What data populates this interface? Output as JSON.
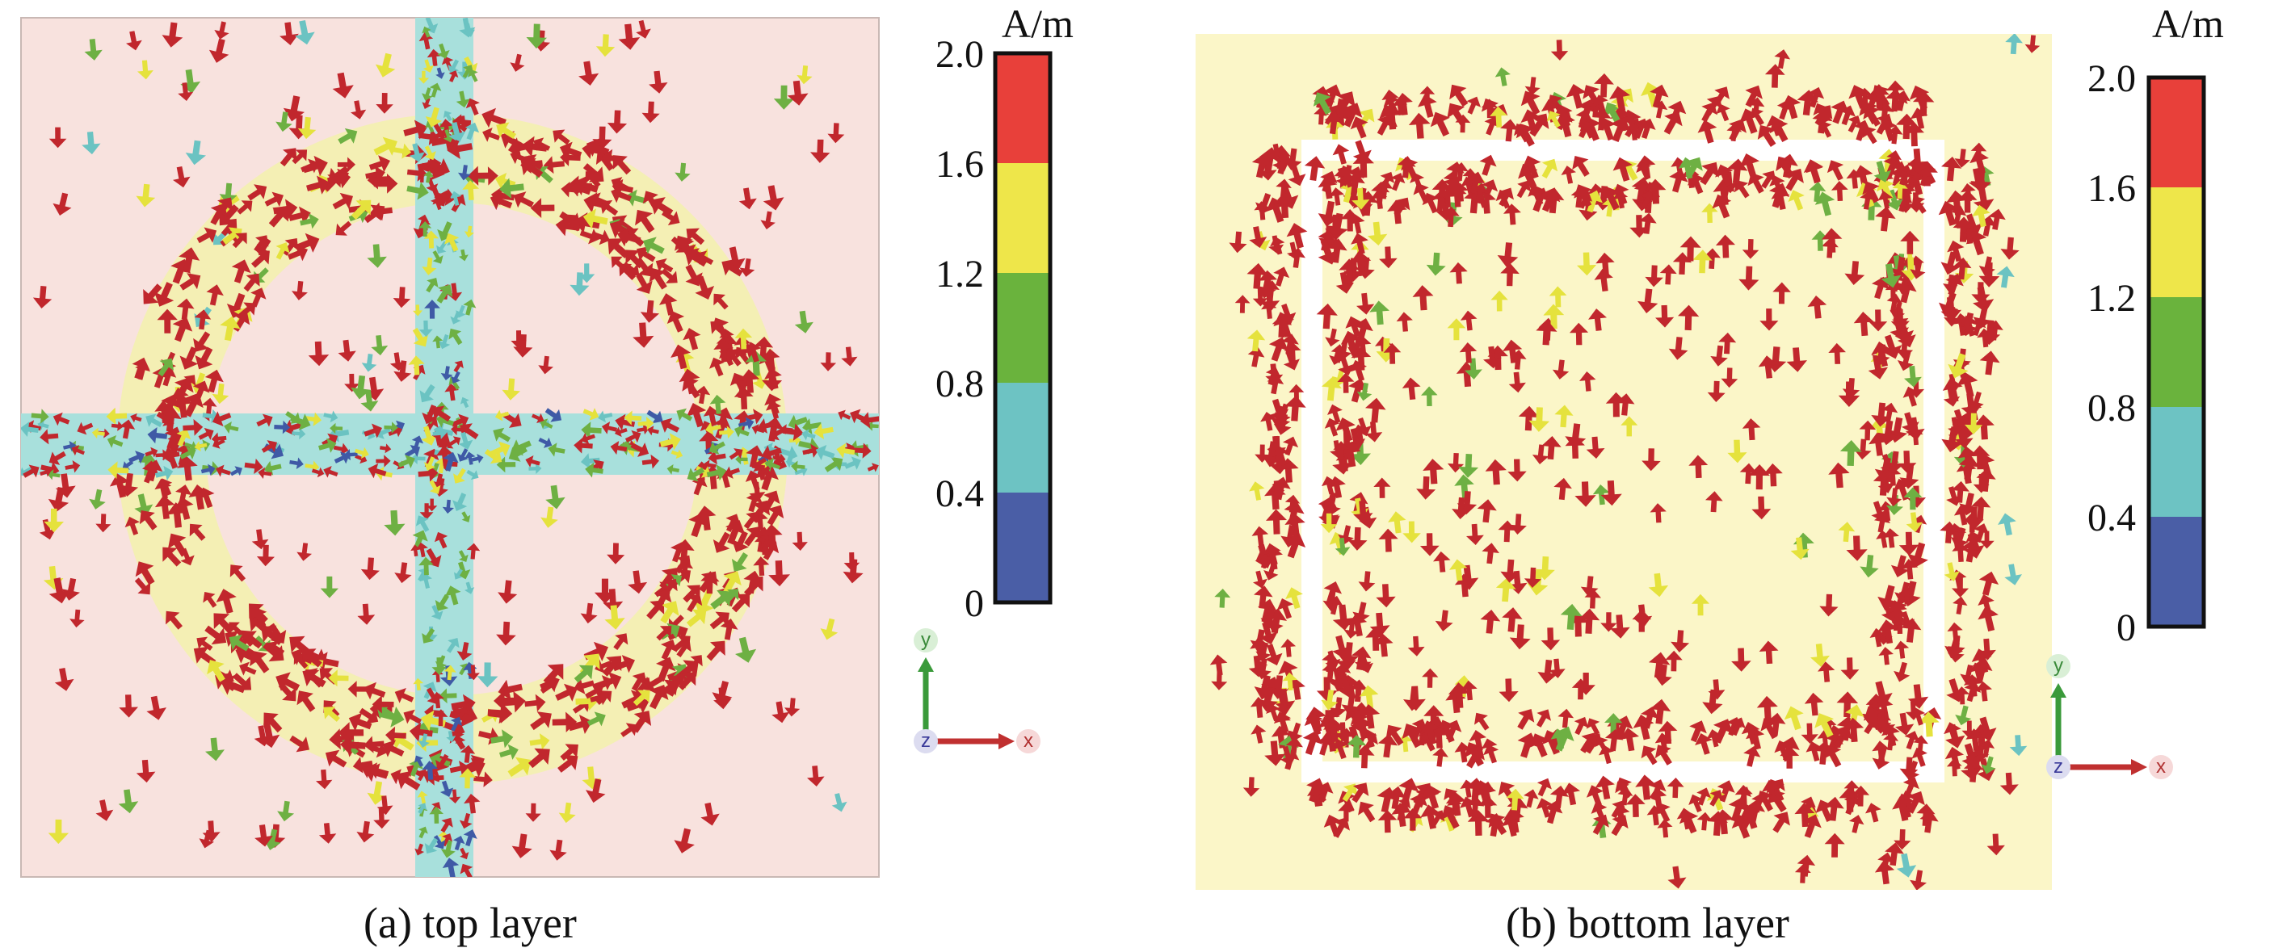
{
  "colors": {
    "top_layer_background": "#f8e2de",
    "bottom_layer_background": "#fbf6c8",
    "ring_overlay": "#f4efb4",
    "cross_strip": "#a8e0dc",
    "frame_line": "#ffffff",
    "arrow_high": "#c1272d",
    "arrow_mid_high": "#e5e23d",
    "arrow_mid": "#6eb043",
    "arrow_low": "#6bc3c2",
    "arrow_min": "#3f5aa6"
  },
  "panels": [
    {
      "id": "a",
      "caption": "(a) top layer",
      "colorbar": {
        "unit": "A/m",
        "ticks": [
          "2.0",
          "1.6",
          "1.2",
          "0.8",
          "0.4",
          "0"
        ],
        "bands": [
          "#e8403a",
          "#eee64a",
          "#6ab33d",
          "#6dc3c3",
          "#4a5ea6"
        ]
      },
      "triad": {
        "y": "y",
        "z": "z",
        "x": "x"
      }
    },
    {
      "id": "b",
      "caption": "(b) bottom layer",
      "colorbar": {
        "unit": "A/m",
        "ticks": [
          "2.0",
          "1.6",
          "1.2",
          "0.8",
          "0.4",
          "0"
        ],
        "bands": [
          "#e8403a",
          "#eee64a",
          "#6ab33d",
          "#6dc3c3",
          "#4a5ea6"
        ]
      },
      "triad": {
        "y": "y",
        "z": "z",
        "x": "x"
      }
    }
  ]
}
